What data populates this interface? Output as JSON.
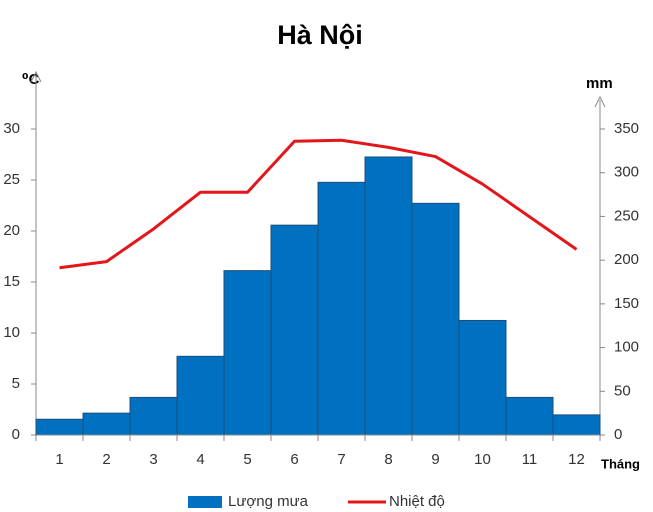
{
  "chart_data": {
    "type": "bar-line",
    "title": "Hà Nội",
    "y_label": "⁰C",
    "y2_label": "mm",
    "x_label": "Tháng",
    "categories": [
      "1",
      "2",
      "3",
      "4",
      "5",
      "6",
      "7",
      "8",
      "9",
      "10",
      "11",
      "12"
    ],
    "series": [
      {
        "name": "Lượng mưa",
        "kind": "bar",
        "axis": "y2",
        "color": "#0070c0",
        "values": [
          18,
          25,
          43,
          90,
          188,
          240,
          289,
          318,
          265,
          131,
          43,
          23
        ]
      },
      {
        "name": "Nhiệt độ",
        "kind": "line",
        "axis": "y",
        "color": "#e3171b",
        "values": [
          16.4,
          17.0,
          20.2,
          23.8,
          23.8,
          28.8,
          28.9,
          28.2,
          27.3,
          24.6,
          21.4,
          18.2
        ]
      }
    ],
    "ylim": [
      0,
      30
    ],
    "yticks": [
      0,
      5,
      10,
      15,
      20,
      25,
      30
    ],
    "y2lim": [
      0,
      350
    ],
    "y2ticks": [
      0,
      50,
      100,
      150,
      200,
      250,
      300,
      350
    ],
    "legend": "bottom"
  }
}
